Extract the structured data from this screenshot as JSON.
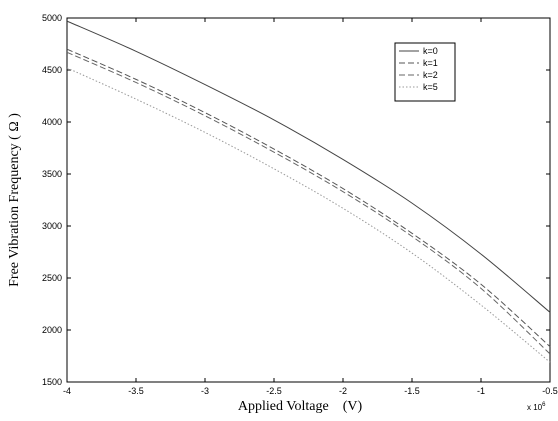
{
  "chart_data": {
    "type": "line",
    "xlabel": "Applied Voltage    (V)",
    "ylabel": "Free Vibration Frequency ( Ω )",
    "x_multiplier": "x 10",
    "x_multiplier_exponent": "6",
    "xlim": [
      -4,
      -0.5
    ],
    "ylim": [
      1500,
      5000
    ],
    "xticks": [
      "-4",
      "-3.5",
      "-3",
      "-2.5",
      "-2",
      "-1.5",
      "-1",
      "-0.5"
    ],
    "yticks": [
      "1500",
      "2000",
      "2500",
      "3000",
      "3500",
      "4000",
      "4500",
      "5000"
    ],
    "x": [
      -4,
      -3.5,
      -3,
      -2.5,
      -2,
      -1.5,
      -1,
      -0.5
    ],
    "series": [
      {
        "name": "k=0",
        "values": [
          4970,
          4680,
          4360,
          4020,
          3640,
          3220,
          2730,
          2170
        ],
        "style": "solid",
        "color": "#444444"
      },
      {
        "name": "k=1",
        "values": [
          4700,
          4410,
          4090,
          3740,
          3360,
          2930,
          2440,
          1840
        ],
        "style": "dashed",
        "color": "#555555"
      },
      {
        "name": "k=2",
        "values": [
          4670,
          4380,
          4060,
          3710,
          3330,
          2900,
          2400,
          1770
        ],
        "style": "dashed",
        "color": "#666666"
      },
      {
        "name": "k=5",
        "values": [
          4520,
          4220,
          3900,
          3550,
          3170,
          2740,
          2240,
          1690
        ],
        "style": "dotted",
        "color": "#999999"
      }
    ],
    "grid": false,
    "legend": "top-right"
  }
}
